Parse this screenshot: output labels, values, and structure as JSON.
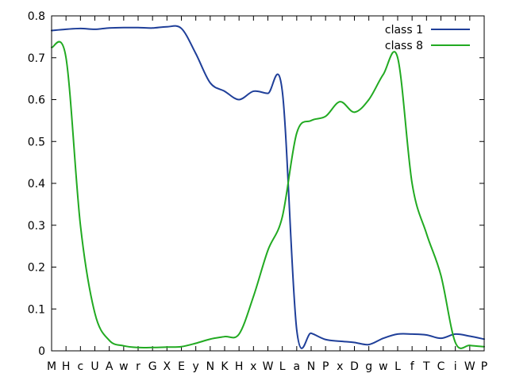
{
  "chart_data": {
    "type": "line",
    "title": "",
    "xlabel": "",
    "ylabel": "",
    "ylim": [
      0,
      0.8
    ],
    "yticks": [
      "0",
      "0.1",
      "0.2",
      "0.3",
      "0.4",
      "0.5",
      "0.6",
      "0.7",
      "0.8"
    ],
    "grid": false,
    "legend_position": "top-right",
    "categories": [
      "M",
      "H",
      "c",
      "U",
      "A",
      "w",
      "r",
      "G",
      "X",
      "E",
      "y",
      "N",
      "K",
      "H",
      "x",
      "W",
      "L",
      "a",
      "N",
      "P",
      "x",
      "D",
      "g",
      "w",
      "L",
      "f",
      "T",
      "C",
      "i",
      "W",
      "P"
    ],
    "series": [
      {
        "name": "class 1",
        "color": "#1f3f99",
        "values": [
          0.765,
          0.768,
          0.77,
          0.768,
          0.771,
          0.772,
          0.772,
          0.771,
          0.774,
          0.77,
          0.71,
          0.64,
          0.62,
          0.6,
          0.62,
          0.615,
          0.62,
          0.05,
          0.042,
          0.027,
          0.023,
          0.02,
          0.015,
          0.03,
          0.04,
          0.04,
          0.038,
          0.03,
          0.04,
          0.035,
          0.028
        ]
      },
      {
        "name": "class 8",
        "color": "#22aa22",
        "values": [
          0.725,
          0.7,
          0.3,
          0.09,
          0.025,
          0.012,
          0.008,
          0.008,
          0.009,
          0.01,
          0.018,
          0.028,
          0.034,
          0.04,
          0.13,
          0.24,
          0.32,
          0.52,
          0.55,
          0.56,
          0.595,
          0.57,
          0.6,
          0.66,
          0.7,
          0.4,
          0.28,
          0.18,
          0.02,
          0.013,
          0.01
        ]
      }
    ]
  }
}
